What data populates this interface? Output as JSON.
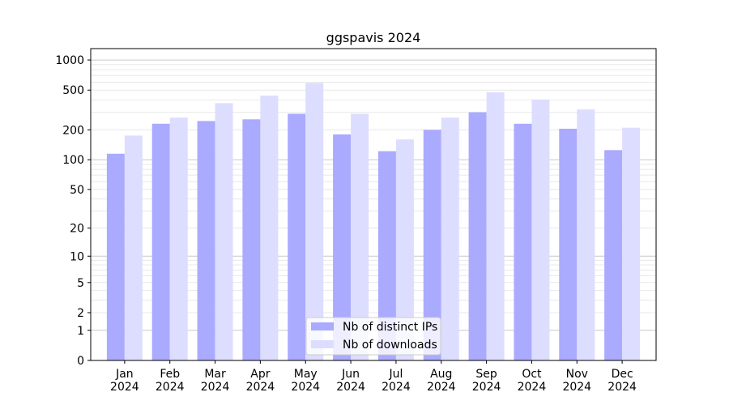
{
  "chart_data": {
    "type": "bar",
    "title": "ggspavis 2024",
    "xlabel": "",
    "ylabel": "",
    "yscale": "symlog",
    "ylim": [
      0,
      1300
    ],
    "yticks": [
      0,
      1,
      2,
      5,
      10,
      20,
      50,
      100,
      200,
      500,
      1000
    ],
    "grid": true,
    "legend_position": "bottom-center",
    "categories": [
      "Jan\n2024",
      "Feb\n2024",
      "Mar\n2024",
      "Apr\n2024",
      "May\n2024",
      "Jun\n2024",
      "Jul\n2024",
      "Aug\n2024",
      "Sep\n2024",
      "Oct\n2024",
      "Nov\n2024",
      "Dec\n2024"
    ],
    "series": [
      {
        "name": "Nb of distinct IPs",
        "color": "#aaaaff",
        "values": [
          115,
          230,
          245,
          255,
          290,
          180,
          122,
          200,
          300,
          230,
          205,
          125
        ]
      },
      {
        "name": "Nb of downloads",
        "color": "#ddddff",
        "values": [
          175,
          265,
          370,
          440,
          590,
          290,
          160,
          265,
          475,
          400,
          320,
          210
        ]
      }
    ]
  }
}
